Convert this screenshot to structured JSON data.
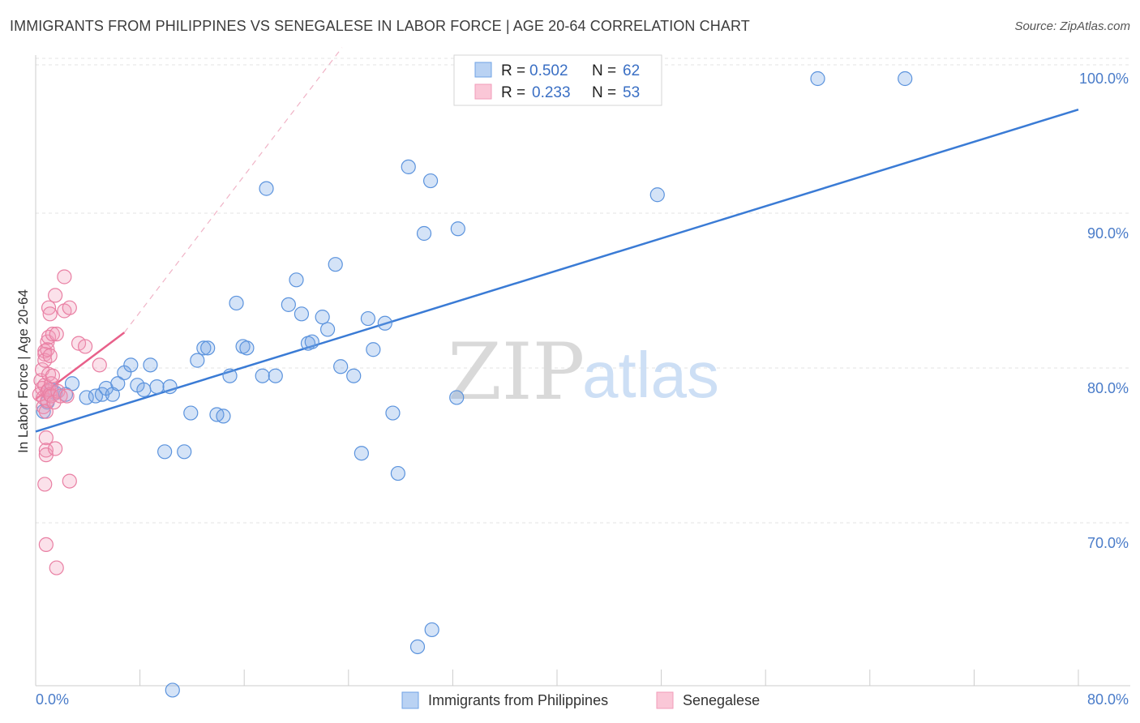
{
  "title": "IMMIGRANTS FROM PHILIPPINES VS SENEGALESE IN LABOR FORCE | AGE 20-64 CORRELATION CHART",
  "source": "Source: ZipAtlas.com",
  "watermark": {
    "zip": "ZIP",
    "atlas": "atlas"
  },
  "colors": {
    "blue": "#6fa3e6",
    "blue_line": "#3a7bd5",
    "pink": "#f29bb8",
    "pink_line": "#e8608a",
    "grid": "#e3e3e3",
    "tick_text": "#4a7cc9"
  },
  "legend": {
    "rows": [
      {
        "r_label": "R =",
        "r_value": "0.502",
        "n_label": "N =",
        "n_value": "62",
        "series": "blue"
      },
      {
        "r_label": "R =",
        "r_value": "0.233",
        "n_label": "N =",
        "n_value": "53",
        "series": "pink"
      }
    ]
  },
  "chart_data": {
    "type": "scatter",
    "title": "IMMIGRANTS FROM PHILIPPINES VS SENEGALESE IN LABOR FORCE | AGE 20-64 CORRELATION CHART",
    "xlabel": "",
    "ylabel": "In Labor Force | Age 20-64",
    "xlim": [
      0,
      80
    ],
    "ylim": [
      60,
      102
    ],
    "x_tick_labels": [
      "0.0%",
      "80.0%"
    ],
    "y_ticks": [
      70,
      80,
      90,
      100
    ],
    "y_tick_labels": [
      "70.0%",
      "80.0%",
      "90.0%",
      "100.0%"
    ],
    "legend_position": "top-center",
    "grid": true,
    "series": [
      {
        "name": "Immigrants from Philippines",
        "color": "#6fa3e6",
        "trend": {
          "x": [
            0,
            80
          ],
          "y": [
            77.2,
            98.0
          ],
          "style": "solid"
        },
        "points": [
          [
            0.6,
            78.5
          ],
          [
            0.9,
            79.1
          ],
          [
            1.2,
            79.9
          ],
          [
            1.5,
            79.7
          ],
          [
            2.3,
            79.6
          ],
          [
            2.8,
            80.3
          ],
          [
            3.9,
            79.4
          ],
          [
            4.6,
            79.5
          ],
          [
            5.1,
            79.6
          ],
          [
            5.4,
            80.0
          ],
          [
            5.9,
            79.6
          ],
          [
            6.3,
            80.3
          ],
          [
            6.8,
            81.0
          ],
          [
            7.3,
            81.5
          ],
          [
            7.8,
            80.2
          ],
          [
            8.3,
            79.9
          ],
          [
            8.8,
            81.5
          ],
          [
            9.3,
            80.1
          ],
          [
            10.3,
            80.1
          ],
          [
            9.9,
            75.9
          ],
          [
            11.4,
            75.9
          ],
          [
            11.9,
            78.4
          ],
          [
            12.4,
            81.8
          ],
          [
            12.9,
            82.6
          ],
          [
            13.2,
            82.6
          ],
          [
            13.9,
            78.3
          ],
          [
            14.4,
            78.2
          ],
          [
            14.9,
            80.8
          ],
          [
            15.4,
            85.5
          ],
          [
            15.9,
            82.7
          ],
          [
            16.2,
            82.6
          ],
          [
            17.4,
            80.8
          ],
          [
            18.4,
            80.8
          ],
          [
            17.7,
            92.9
          ],
          [
            19.4,
            85.4
          ],
          [
            20.0,
            87.0
          ],
          [
            20.4,
            84.8
          ],
          [
            20.9,
            82.9
          ],
          [
            21.2,
            83.0
          ],
          [
            22.0,
            84.6
          ],
          [
            22.4,
            83.8
          ],
          [
            23.0,
            88.0
          ],
          [
            23.4,
            81.4
          ],
          [
            24.4,
            80.8
          ],
          [
            25.0,
            75.8
          ],
          [
            25.5,
            84.5
          ],
          [
            25.9,
            82.5
          ],
          [
            26.8,
            84.2
          ],
          [
            27.4,
            78.4
          ],
          [
            27.8,
            74.5
          ],
          [
            28.6,
            94.3
          ],
          [
            29.8,
            90.0
          ],
          [
            30.3,
            93.4
          ],
          [
            32.3,
            79.4
          ],
          [
            32.4,
            90.3
          ],
          [
            30.4,
            64.4
          ],
          [
            29.3,
            63.3
          ],
          [
            10.5,
            60.5
          ],
          [
            47.7,
            92.5
          ],
          [
            60.0,
            100.0
          ],
          [
            66.7,
            100.0
          ]
        ]
      },
      {
        "name": "Senegalese",
        "color": "#f29bb8",
        "trend": {
          "x": [
            0,
            6.8
          ],
          "y": [
            79.3,
            83.6
          ],
          "style": "solid",
          "extension_to": [
            23.5,
            102
          ]
        },
        "points": [
          [
            0.3,
            79.6
          ],
          [
            0.4,
            80.5
          ],
          [
            0.5,
            81.2
          ],
          [
            0.5,
            80.0
          ],
          [
            0.6,
            79.4
          ],
          [
            0.6,
            78.8
          ],
          [
            0.7,
            82.4
          ],
          [
            0.7,
            82.2
          ],
          [
            0.7,
            81.8
          ],
          [
            0.7,
            80.2
          ],
          [
            0.8,
            78.5
          ],
          [
            0.8,
            76.8
          ],
          [
            0.8,
            76.0
          ],
          [
            0.8,
            75.7
          ],
          [
            0.9,
            83.0
          ],
          [
            0.9,
            82.5
          ],
          [
            0.9,
            79.8
          ],
          [
            0.9,
            79.2
          ],
          [
            1.0,
            85.2
          ],
          [
            1.0,
            83.3
          ],
          [
            1.0,
            80.9
          ],
          [
            1.0,
            79.9
          ],
          [
            1.1,
            84.8
          ],
          [
            1.1,
            82.1
          ],
          [
            1.1,
            79.6
          ],
          [
            1.2,
            80.3
          ],
          [
            1.2,
            79.5
          ],
          [
            1.3,
            83.5
          ],
          [
            1.3,
            80.8
          ],
          [
            1.4,
            79.1
          ],
          [
            1.5,
            86.0
          ],
          [
            1.5,
            76.1
          ],
          [
            1.6,
            83.5
          ],
          [
            1.7,
            79.8
          ],
          [
            1.9,
            79.5
          ],
          [
            2.2,
            87.2
          ],
          [
            2.2,
            85.0
          ],
          [
            2.4,
            79.5
          ],
          [
            2.6,
            85.2
          ],
          [
            2.6,
            74.0
          ],
          [
            3.3,
            82.9
          ],
          [
            3.8,
            82.7
          ],
          [
            4.9,
            81.5
          ],
          [
            0.7,
            73.8
          ],
          [
            0.8,
            69.9
          ],
          [
            1.6,
            68.4
          ]
        ]
      }
    ]
  }
}
